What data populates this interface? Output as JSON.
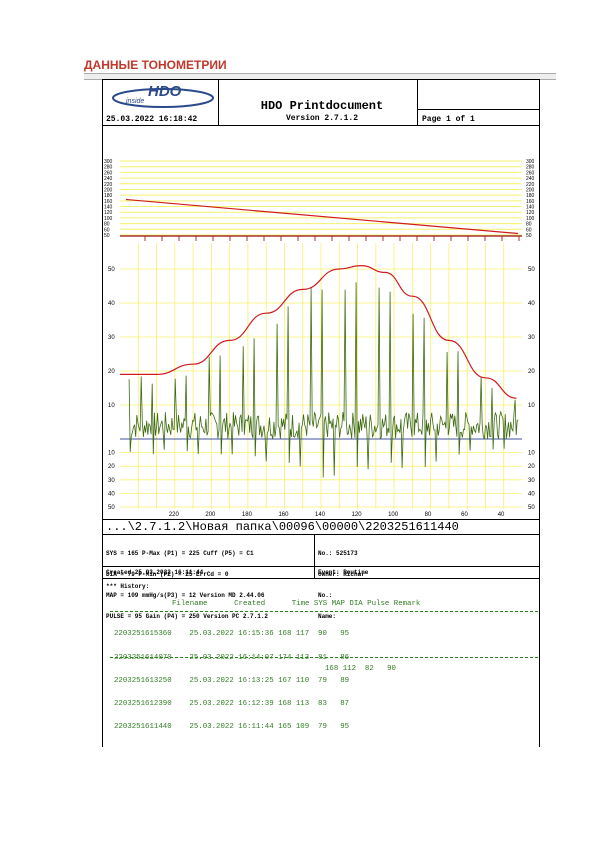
{
  "heading": "ДАННЫЕ ТОНОМЕТРИИ",
  "header": {
    "logo_text": "HDO",
    "logo_sub": "inside",
    "datetime": "25.03.2022 16:18:42",
    "title": "HDO Printdocument",
    "version": "Version 2.7.1.2",
    "page": "Page 1 of 1"
  },
  "colors": {
    "grid": "#f5f06e",
    "envelope": "#d01c1c",
    "signal": "#3c6a10",
    "baseline": "#4050a0",
    "history": "#2f7d22"
  },
  "top_chart": {
    "left_ticks": [
      "300",
      "280",
      "260",
      "240",
      "220",
      "200",
      "180",
      "160",
      "140",
      "120",
      "100",
      "80",
      "60",
      "50"
    ],
    "pressure_start": 170,
    "pressure_end": 55
  },
  "chart_data": {
    "type": "line",
    "x_tick_labels": [
      "220",
      "200",
      "180",
      "160",
      "140",
      "120",
      "100",
      "80",
      "60",
      "40"
    ],
    "y_upper_labels": [
      "50",
      "40",
      "30",
      "20",
      "10"
    ],
    "y_lower_labels": [
      "10",
      "20",
      "30",
      "40",
      "50"
    ],
    "series": [
      {
        "name": "",
        "x": [
          250,
          230,
          210,
          190,
          170,
          150,
          130,
          118,
          105,
          90,
          70,
          50,
          33
        ],
        "y": [
          19,
          19,
          22,
          29,
          37,
          44,
          50,
          51,
          49,
          42,
          29,
          18,
          12
        ]
      }
    ]
  },
  "path": "...\\2.7.1.2\\Новая папка\\00096\\00000\\2203251611440",
  "info": {
    "col1": [
      "SYS = 165 P-Max (P1) = 225 Cuff (P5) = C1",
      "DIA = 79 P-Min (P2) = 25 ErrCd = 0",
      "MAP = 109 mmHg/s(P3) = 12 Version MD 2.44.06",
      "PULSE = 95 Gain (P4) = 250 Version PC 2.7.1.2"
    ],
    "col2": [
      "No.: 525173",
      "Owner: Richar",
      "No.:",
      "Name:"
    ],
    "created": "Created 25.03.2022 16:11:44",
    "event": "Event: Routine"
  },
  "history": {
    "title": "*** History:",
    "columns_line": "Filename      Created      Time SYS MAP DIA Pulse Remark",
    "rows": [
      "2203251615360    25.03.2022 16:15:36 168 117  90   95",
      "2203251614070    25.03.2022 16:14:07 174 113  81   86",
      "2203251613250    25.03.2022 16:13:25 167 110  79   89",
      "2203251612390    25.03.2022 16:12:39 168 113  83   87",
      "2203251611440    25.03.2022 16:11:44 165 109  79   95"
    ],
    "totals": "168 112  82   90"
  }
}
